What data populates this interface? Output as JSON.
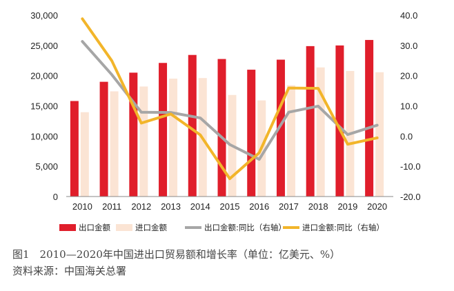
{
  "chart_data": {
    "type": "bar+line",
    "categories": [
      "2010",
      "2011",
      "2012",
      "2013",
      "2014",
      "2015",
      "2016",
      "2017",
      "2018",
      "2019",
      "2020"
    ],
    "left_axis": {
      "ticks": [
        "0",
        "5,000",
        "10,000",
        "15,000",
        "20,000",
        "25,000",
        "30,000"
      ],
      "ylim": [
        0,
        30000
      ]
    },
    "right_axis": {
      "ticks": [
        "-20.0",
        "-10.0",
        "0.0",
        "10.0",
        "20.0",
        "30.0",
        "40.0"
      ],
      "ylim": [
        -20,
        40
      ]
    },
    "series": [
      {
        "name": "出口金额",
        "kind": "bar",
        "axis": "left",
        "color": "#e01e2b",
        "values": [
          15800,
          18980,
          20490,
          22100,
          23420,
          22750,
          20980,
          22640,
          24880,
          24990,
          25900
        ]
      },
      {
        "name": "进口金额",
        "kind": "bar",
        "axis": "left",
        "color": "#fbe4d4",
        "values": [
          13950,
          17400,
          18200,
          19500,
          19600,
          16800,
          15900,
          18400,
          21360,
          20770,
          20560
        ]
      },
      {
        "name": "出口金额:同比（右轴）",
        "kind": "line",
        "axis": "right",
        "color": "#a6a6a6",
        "values": [
          31.3,
          20.3,
          7.9,
          7.8,
          6.0,
          -2.8,
          -7.7,
          7.9,
          9.9,
          0.5,
          3.6
        ]
      },
      {
        "name": "进口金额:同比（右轴）",
        "kind": "line",
        "axis": "right",
        "color": "#f2b52a",
        "values": [
          38.8,
          24.9,
          4.3,
          7.3,
          0.4,
          -14.1,
          -5.5,
          15.9,
          15.8,
          -2.7,
          -0.6
        ]
      }
    ],
    "legend_position": "bottom",
    "grid": false
  },
  "caption": {
    "line1": "图1　2010—2020年中国进出口贸易额和增长率（单位：亿美元、%）",
    "line2": "资料来源：中国海关总署"
  }
}
